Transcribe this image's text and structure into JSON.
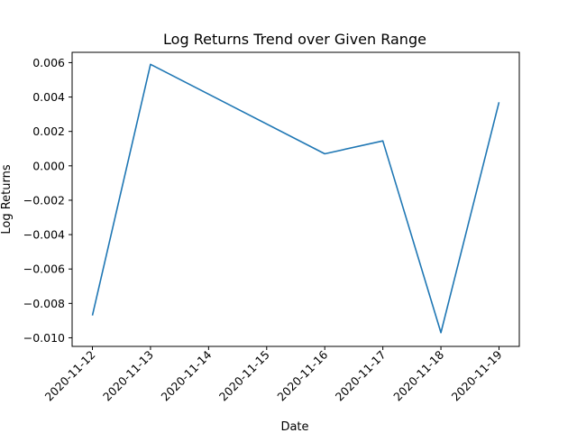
{
  "chart_data": {
    "type": "line",
    "title": "Log Returns Trend over Given Range",
    "xlabel": "Date",
    "ylabel": "Log Returns",
    "categories": [
      "2020-11-12",
      "2020-11-13",
      "2020-11-14",
      "2020-11-15",
      "2020-11-16",
      "2020-11-17",
      "2020-11-18",
      "2020-11-19"
    ],
    "series": [
      {
        "values": [
          -0.0087,
          0.0059,
          null,
          null,
          0.0007,
          0.00145,
          -0.0097,
          0.0037
        ],
        "color": "#1f77b4"
      }
    ],
    "ylim": [
      -0.0105,
      0.0066
    ],
    "yticks": [
      -0.01,
      -0.008,
      -0.006,
      -0.004,
      -0.002,
      0.0,
      0.002,
      0.004,
      0.006
    ],
    "ytick_labels": [
      "−0.010",
      "−0.008",
      "−0.006",
      "−0.004",
      "−0.002",
      "0.000",
      "0.002",
      "0.004",
      "0.006"
    ],
    "grid": false,
    "legend": "none"
  }
}
